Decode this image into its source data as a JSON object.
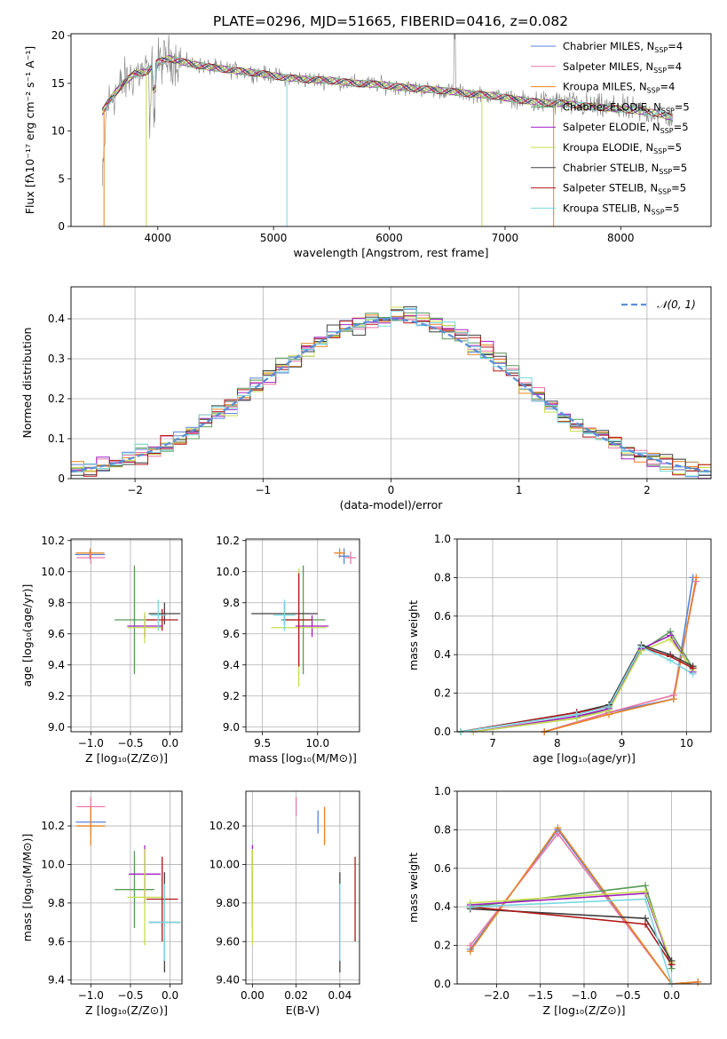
{
  "figure": {
    "title": "PLATE=0296, MJD=51665, FIBERID=0416, z=0.082"
  },
  "colors": {
    "chabrier_miles": "#5a83d6",
    "salpeter_miles": "#e878a8",
    "kroupa_miles": "#e8821e",
    "chabrier_elodie": "#5a9a5a",
    "salpeter_elodie": "#a020c0",
    "kroupa_elodie": "#c8dc50",
    "chabrier_stelib": "#404040",
    "salpeter_stelib": "#b01818",
    "kroupa_stelib": "#78d8e0",
    "data_grey": "#808080",
    "gauss": "#5b8fd6"
  },
  "chart_data": [
    {
      "id": "spectrum",
      "type": "line",
      "title": "PLATE=0296, MJD=51665, FIBERID=0416, z=0.082",
      "xlabel": "wavelength [Angstrom, rest frame]",
      "ylabel": "Flux [fλ10⁻¹⁷ erg cm⁻² s⁻¹ A⁻¹]",
      "xlim": [
        3250,
        8780
      ],
      "ylim": [
        0,
        20.2
      ],
      "xticks": [
        4000,
        5000,
        6000,
        7000,
        8000
      ],
      "yticks": [
        0,
        5,
        10,
        15,
        20
      ],
      "legend_position": "top-right",
      "legend": [
        {
          "key": "chabrier_miles",
          "label": "Chabrier MILES, N",
          "sub": "SSP",
          "suffix": "=4"
        },
        {
          "key": "salpeter_miles",
          "label": "Salpeter MILES, N",
          "sub": "SSP",
          "suffix": "=4"
        },
        {
          "key": "kroupa_miles",
          "label": "Kroupa MILES, N",
          "sub": "SSP",
          "suffix": "=4"
        },
        {
          "key": "chabrier_elodie",
          "label": "Chabrier ELODIE, N",
          "sub": "SSP",
          "suffix": "=5"
        },
        {
          "key": "salpeter_elodie",
          "label": "Salpeter ELODIE, N",
          "sub": "SSP",
          "suffix": "=5"
        },
        {
          "key": "kroupa_elodie",
          "label": "Kroupa ELODIE, N",
          "sub": "SSP",
          "suffix": "=5"
        },
        {
          "key": "chabrier_stelib",
          "label": "Chabrier STELIB, N",
          "sub": "SSP",
          "suffix": "=5"
        },
        {
          "key": "salpeter_stelib",
          "label": "Salpeter STELIB, N",
          "sub": "SSP",
          "suffix": "=5"
        },
        {
          "key": "kroupa_stelib",
          "label": "Kroupa STELIB, N",
          "sub": "SSP",
          "suffix": "=5"
        }
      ],
      "continuum": [
        [
          3520,
          12.0
        ],
        [
          3600,
          13.5
        ],
        [
          3700,
          15.0
        ],
        [
          3800,
          16.0
        ],
        [
          3900,
          16.2
        ],
        [
          4000,
          17.2
        ],
        [
          4100,
          17.6
        ],
        [
          4300,
          17.0
        ],
        [
          4500,
          16.6
        ],
        [
          4700,
          16.3
        ],
        [
          4900,
          16.0
        ],
        [
          5100,
          15.6
        ],
        [
          5300,
          15.4
        ],
        [
          5500,
          15.3
        ],
        [
          5700,
          15.0
        ],
        [
          5900,
          14.9
        ],
        [
          6100,
          14.6
        ],
        [
          6300,
          14.4
        ],
        [
          6500,
          14.2
        ],
        [
          6700,
          13.9
        ],
        [
          6900,
          13.7
        ],
        [
          7100,
          13.3
        ],
        [
          7300,
          13.0
        ],
        [
          7500,
          12.9
        ],
        [
          7700,
          12.6
        ],
        [
          7900,
          12.4
        ],
        [
          8100,
          12.2
        ],
        [
          8300,
          11.9
        ],
        [
          8450,
          11.4
        ]
      ]
    },
    {
      "id": "residuals",
      "type": "histogram",
      "xlabel": "(data-model)/error",
      "ylabel": "Normed distribution",
      "xlim": [
        -2.5,
        2.5
      ],
      "ylim": [
        0,
        0.48
      ],
      "xticks": [
        -2,
        -1,
        0,
        1,
        2
      ],
      "yticks": [
        0.0,
        0.1,
        0.2,
        0.3,
        0.4
      ],
      "legend_position": "top-right",
      "legend": [
        {
          "label": "𝒩(0, 1)",
          "style": "dashed"
        }
      ],
      "bin_width": 0.1
    },
    {
      "id": "age_vs_Z",
      "type": "errorbar",
      "xlabel": "Z [log₁₀(Z/Z⊙)]",
      "ylabel": "age  [log₁₀(age/yr)]",
      "xlim": [
        -1.25,
        0.15
      ],
      "ylim": [
        8.97,
        10.21
      ],
      "xticks": [
        -1.0,
        -0.5,
        0.0
      ],
      "yticks": [
        9.0,
        9.2,
        9.4,
        9.6,
        9.8,
        10.0,
        10.2
      ],
      "points": [
        {
          "key": "chabrier_miles",
          "x": -1.01,
          "xerr": 0.19,
          "y": 10.11,
          "yerr": 0.03
        },
        {
          "key": "salpeter_miles",
          "x": -1.0,
          "xerr": 0.18,
          "y": 10.09,
          "yerr": 0.04
        },
        {
          "key": "kroupa_miles",
          "x": -1.01,
          "xerr": 0.18,
          "y": 10.12,
          "yerr": 0.03
        },
        {
          "key": "chabrier_elodie",
          "x": -0.45,
          "xerr": 0.25,
          "y": 9.69,
          "yerr": 0.35
        },
        {
          "key": "salpeter_elodie",
          "x": -0.32,
          "xerr": 0.22,
          "y": 9.65,
          "yerr": 0.07
        },
        {
          "key": "kroupa_elodie",
          "x": -0.32,
          "xerr": 0.22,
          "y": 9.64,
          "yerr": 0.1
        },
        {
          "key": "chabrier_stelib",
          "x": -0.07,
          "xerr": 0.2,
          "y": 9.73,
          "yerr": 0.07
        },
        {
          "key": "salpeter_stelib",
          "x": -0.1,
          "xerr": 0.2,
          "y": 9.69,
          "yerr": 0.07
        },
        {
          "key": "kroupa_stelib",
          "x": -0.15,
          "xerr": 0.1,
          "y": 9.72,
          "yerr": 0.1
        }
      ]
    },
    {
      "id": "age_vs_mass",
      "type": "errorbar",
      "xlabel": "mass [log₁₀(M/M⊙)]",
      "ylabel": "",
      "xlim": [
        9.35,
        10.38
      ],
      "ylim": [
        8.97,
        10.21
      ],
      "xticks": [
        9.5,
        10.0
      ],
      "yticks": [
        9.0,
        9.2,
        9.4,
        9.6,
        9.8,
        10.0,
        10.2
      ],
      "points": [
        {
          "key": "chabrier_miles",
          "x": 10.24,
          "xerr": 0.05,
          "y": 10.1,
          "yerr": 0.05
        },
        {
          "key": "salpeter_miles",
          "x": 10.3,
          "xerr": 0.05,
          "y": 10.09,
          "yerr": 0.04
        },
        {
          "key": "kroupa_miles",
          "x": 10.2,
          "xerr": 0.05,
          "y": 10.12,
          "yerr": 0.03
        },
        {
          "key": "chabrier_elodie",
          "x": 9.87,
          "xerr": 0.2,
          "y": 9.69,
          "yerr": 0.35
        },
        {
          "key": "salpeter_elodie",
          "x": 9.95,
          "xerr": 0.15,
          "y": 9.65,
          "yerr": 0.07
        },
        {
          "key": "kroupa_elodie",
          "x": 9.83,
          "xerr": 0.25,
          "y": 9.64,
          "yerr": 0.38
        },
        {
          "key": "chabrier_stelib",
          "x": 9.7,
          "xerr": 0.3,
          "y": 9.73,
          "yerr": 0.07
        },
        {
          "key": "salpeter_stelib",
          "x": 9.83,
          "xerr": 0.12,
          "y": 9.69,
          "yerr": 0.3
        },
        {
          "key": "kroupa_stelib",
          "x": 9.7,
          "xerr": 0.1,
          "y": 9.72,
          "yerr": 0.1
        }
      ]
    },
    {
      "id": "weight_vs_age",
      "type": "line",
      "xlabel": "age  [log₁₀(age/yr)]",
      "ylabel": "mass weight",
      "xlim": [
        6.45,
        10.38
      ],
      "ylim": [
        0,
        1
      ],
      "xticks": [
        7,
        8,
        9,
        10
      ],
      "yticks": [
        0.0,
        0.2,
        0.4,
        0.6,
        0.8,
        1.0
      ],
      "series": [
        {
          "key": "chabrier_miles",
          "x": [
            7.8,
            8.8,
            9.8,
            10.1
          ],
          "y": [
            0.0,
            0.1,
            0.17,
            0.8
          ]
        },
        {
          "key": "salpeter_miles",
          "x": [
            7.8,
            8.8,
            9.8,
            10.15
          ],
          "y": [
            0.0,
            0.1,
            0.19,
            0.78
          ]
        },
        {
          "key": "kroupa_miles",
          "x": [
            7.8,
            8.8,
            9.8,
            10.15
          ],
          "y": [
            0.0,
            0.09,
            0.17,
            0.8
          ]
        },
        {
          "key": "chabrier_elodie",
          "x": [
            6.7,
            8.3,
            8.8,
            9.3,
            9.75,
            10.1
          ],
          "y": [
            0.0,
            0.07,
            0.12,
            0.42,
            0.52,
            0.33
          ]
        },
        {
          "key": "salpeter_elodie",
          "x": [
            6.7,
            8.3,
            8.8,
            9.3,
            9.75,
            10.1
          ],
          "y": [
            0.0,
            0.08,
            0.12,
            0.43,
            0.5,
            0.31
          ]
        },
        {
          "key": "kroupa_elodie",
          "x": [
            6.7,
            8.3,
            8.8,
            9.3,
            9.75,
            10.1
          ],
          "y": [
            0.0,
            0.07,
            0.11,
            0.42,
            0.48,
            0.32
          ]
        },
        {
          "key": "chabrier_stelib",
          "x": [
            6.5,
            8.3,
            8.8,
            9.3,
            9.75,
            10.1
          ],
          "y": [
            0.0,
            0.1,
            0.14,
            0.45,
            0.4,
            0.34
          ]
        },
        {
          "key": "salpeter_stelib",
          "x": [
            6.5,
            8.3,
            8.8,
            9.3,
            9.75,
            10.1
          ],
          "y": [
            0.0,
            0.1,
            0.13,
            0.44,
            0.39,
            0.33
          ]
        },
        {
          "key": "kroupa_stelib",
          "x": [
            6.5,
            8.3,
            8.8,
            9.3,
            9.75,
            10.1
          ],
          "y": [
            0.0,
            0.09,
            0.13,
            0.44,
            0.37,
            0.3
          ]
        }
      ]
    },
    {
      "id": "mass_vs_Z",
      "type": "errorbar",
      "xlabel": "Z [log₁₀(Z/Z⊙)]",
      "ylabel": "mass [log₁₀(M/M⊙)]",
      "xlim": [
        -1.25,
        0.15
      ],
      "ylim": [
        9.38,
        10.38
      ],
      "xticks": [
        -1.0,
        -0.5,
        0.0
      ],
      "yticks": [
        9.4,
        9.6,
        9.8,
        10.0,
        10.2
      ],
      "points": [
        {
          "key": "chabrier_miles",
          "x": -1.0,
          "xerr": 0.19,
          "y": 10.22,
          "yerr": 0.06
        },
        {
          "key": "salpeter_miles",
          "x": -1.0,
          "xerr": 0.18,
          "y": 10.3,
          "yerr": 0.05
        },
        {
          "key": "kroupa_miles",
          "x": -1.0,
          "xerr": 0.18,
          "y": 10.2,
          "yerr": 0.1
        },
        {
          "key": "chabrier_elodie",
          "x": -0.45,
          "xerr": 0.25,
          "y": 9.87,
          "yerr": 0.2
        },
        {
          "key": "salpeter_elodie",
          "x": -0.32,
          "xerr": 0.2,
          "y": 9.95,
          "yerr": 0.15
        },
        {
          "key": "kroupa_elodie",
          "x": -0.32,
          "xerr": 0.22,
          "y": 9.83,
          "yerr": 0.25
        },
        {
          "key": "chabrier_stelib",
          "x": -0.07,
          "xerr": 0.2,
          "y": 9.7,
          "yerr": 0.26
        },
        {
          "key": "salpeter_stelib",
          "x": -0.1,
          "xerr": 0.2,
          "y": 9.82,
          "yerr": 0.22
        },
        {
          "key": "kroupa_stelib",
          "x": -0.07,
          "xerr": 0.2,
          "y": 9.7,
          "yerr": 0.2
        }
      ]
    },
    {
      "id": "mass_vs_ebv",
      "type": "errorbar",
      "xlabel": "E(B-V)",
      "ylabel": "",
      "xlim": [
        -0.003,
        0.049
      ],
      "ylim": [
        9.38,
        10.38
      ],
      "xticks": [
        0.0,
        0.02,
        0.04
      ],
      "yticks": [
        9.4,
        9.6,
        9.8,
        10.0,
        10.2
      ],
      "points": [
        {
          "key": "chabrier_miles",
          "x": 0.03,
          "y": 10.22,
          "yerr": 0.06
        },
        {
          "key": "salpeter_miles",
          "x": 0.02,
          "y": 10.3,
          "yerr": 0.05
        },
        {
          "key": "kroupa_miles",
          "x": 0.033,
          "y": 10.2,
          "yerr": 0.1
        },
        {
          "key": "chabrier_elodie",
          "x": 0.0,
          "y": 9.87,
          "yerr": 0.2
        },
        {
          "key": "salpeter_elodie",
          "x": 0.0,
          "y": 9.95,
          "yerr": 0.15
        },
        {
          "key": "kroupa_elodie",
          "x": 0.0,
          "y": 9.83,
          "yerr": 0.25
        },
        {
          "key": "chabrier_stelib",
          "x": 0.04,
          "y": 9.7,
          "yerr": 0.26
        },
        {
          "key": "salpeter_stelib",
          "x": 0.047,
          "y": 9.82,
          "yerr": 0.22
        },
        {
          "key": "kroupa_stelib",
          "x": 0.04,
          "y": 9.7,
          "yerr": 0.2
        }
      ]
    },
    {
      "id": "weight_vs_Z",
      "type": "line",
      "xlabel": "Z [log₁₀(Z/Z⊙)]",
      "ylabel": "mass weight",
      "xlim": [
        -2.45,
        0.45
      ],
      "ylim": [
        0,
        1
      ],
      "xticks": [
        -2.0,
        -1.5,
        -1.0,
        -0.5,
        0.0
      ],
      "yticks": [
        0.0,
        0.2,
        0.4,
        0.6,
        0.8,
        1.0
      ],
      "series": [
        {
          "key": "chabrier_miles",
          "x": [
            -2.3,
            -1.3,
            0.0,
            0.3
          ],
          "y": [
            0.18,
            0.8,
            0.0,
            0.01
          ]
        },
        {
          "key": "salpeter_miles",
          "x": [
            -2.3,
            -1.3,
            0.0,
            0.3
          ],
          "y": [
            0.2,
            0.78,
            0.0,
            0.01
          ]
        },
        {
          "key": "kroupa_miles",
          "x": [
            -2.3,
            -1.3,
            0.0,
            0.3
          ],
          "y": [
            0.17,
            0.81,
            0.0,
            0.01
          ]
        },
        {
          "key": "chabrier_elodie",
          "x": [
            -2.3,
            -0.3,
            0.0
          ],
          "y": [
            0.4,
            0.51,
            0.08
          ]
        },
        {
          "key": "salpeter_elodie",
          "x": [
            -2.3,
            -0.3,
            0.0
          ],
          "y": [
            0.41,
            0.47,
            0.1
          ]
        },
        {
          "key": "kroupa_elodie",
          "x": [
            -2.3,
            -0.3,
            0.0
          ],
          "y": [
            0.42,
            0.48,
            0.11
          ]
        },
        {
          "key": "chabrier_stelib",
          "x": [
            -2.3,
            -0.3,
            0.0
          ],
          "y": [
            0.39,
            0.34,
            0.12
          ]
        },
        {
          "key": "salpeter_stelib",
          "x": [
            -2.3,
            -0.3,
            0.0
          ],
          "y": [
            0.4,
            0.31,
            0.1
          ]
        },
        {
          "key": "kroupa_stelib",
          "x": [
            -2.3,
            -0.3,
            0.0
          ],
          "y": [
            0.4,
            0.44,
            0.0
          ]
        }
      ]
    }
  ]
}
